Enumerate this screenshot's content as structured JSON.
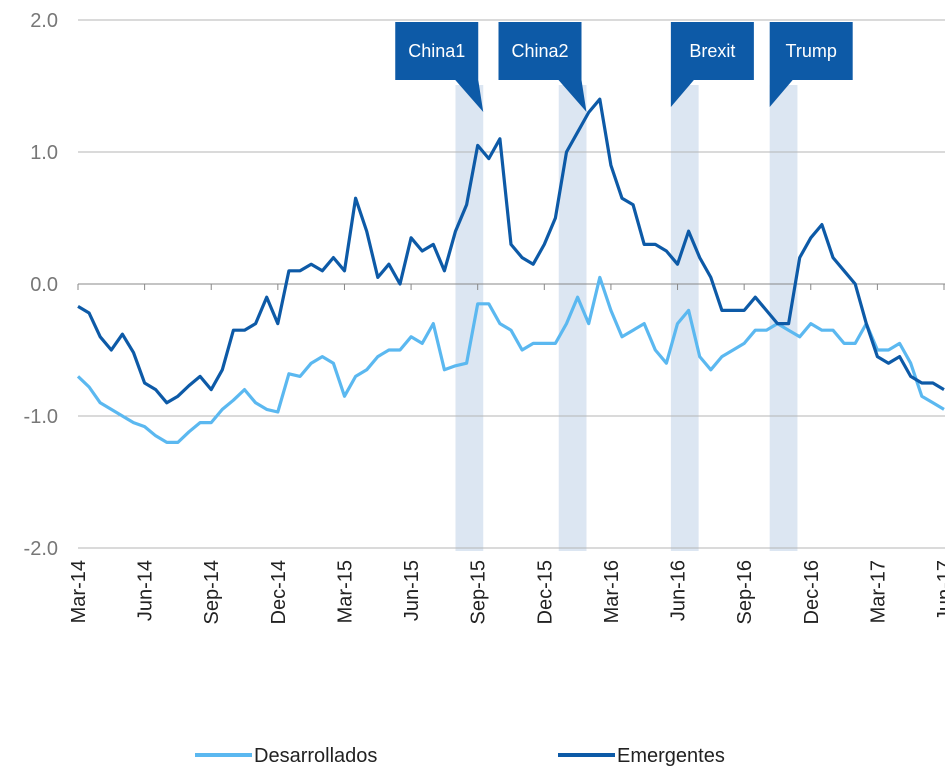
{
  "chart_data": {
    "type": "line",
    "categories": [
      "Mar-14",
      null,
      null,
      null,
      null,
      null,
      "Jun-14",
      null,
      null,
      null,
      null,
      null,
      "Sep-14",
      null,
      null,
      null,
      null,
      null,
      "Dec-14",
      null,
      null,
      null,
      null,
      null,
      "Mar-15",
      null,
      null,
      null,
      null,
      null,
      "Jun-15",
      null,
      null,
      null,
      null,
      null,
      "Sep-15",
      null,
      null,
      null,
      null,
      null,
      "Dec-15",
      null,
      null,
      null,
      null,
      null,
      "Mar-16",
      null,
      null,
      null,
      null,
      null,
      "Jun-16",
      null,
      null,
      null,
      null,
      null,
      "Sep-16",
      null,
      null,
      null,
      null,
      null,
      "Dec-16",
      null,
      null,
      null,
      null,
      null,
      "Mar-17",
      null,
      null,
      null,
      null,
      null,
      "Jun-17"
    ],
    "series": [
      {
        "name": "Desarrollados",
        "color": "#5bb8f0",
        "values": [
          -0.7,
          -0.78,
          -0.9,
          -0.95,
          -1.0,
          -1.05,
          -1.08,
          -1.15,
          -1.2,
          -1.2,
          -1.12,
          -1.05,
          -1.05,
          -0.95,
          -0.88,
          -0.8,
          -0.9,
          -0.95,
          -0.97,
          -0.68,
          -0.7,
          -0.6,
          -0.55,
          -0.6,
          -0.85,
          -0.7,
          -0.65,
          -0.55,
          -0.5,
          -0.5,
          -0.4,
          -0.45,
          -0.3,
          -0.65,
          -0.62,
          -0.6,
          -0.15,
          -0.15,
          -0.3,
          -0.35,
          -0.5,
          -0.45,
          -0.45,
          -0.45,
          -0.3,
          -0.1,
          -0.3,
          0.05,
          -0.2,
          -0.4,
          -0.35,
          -0.3,
          -0.5,
          -0.6,
          -0.3,
          -0.2,
          -0.55,
          -0.65,
          -0.55,
          -0.5,
          -0.45,
          -0.35,
          -0.35,
          -0.3,
          -0.35,
          -0.4,
          -0.3,
          -0.35,
          -0.35,
          -0.45,
          -0.45,
          -0.3,
          -0.5,
          -0.5,
          -0.45,
          -0.6,
          -0.85,
          -0.9,
          -0.95
        ]
      },
      {
        "name": "Emergentes",
        "color": "#0d5aa7",
        "values": [
          -0.17,
          -0.22,
          -0.4,
          -0.5,
          -0.38,
          -0.52,
          -0.75,
          -0.8,
          -0.9,
          -0.85,
          -0.77,
          -0.7,
          -0.8,
          -0.65,
          -0.35,
          -0.35,
          -0.3,
          -0.1,
          -0.3,
          0.1,
          0.1,
          0.15,
          0.1,
          0.2,
          0.1,
          0.65,
          0.4,
          0.05,
          0.15,
          0.0,
          0.35,
          0.25,
          0.3,
          0.1,
          0.4,
          0.6,
          1.05,
          0.95,
          1.1,
          0.3,
          0.2,
          0.15,
          0.3,
          0.5,
          1.0,
          1.15,
          1.3,
          1.4,
          0.9,
          0.65,
          0.6,
          0.3,
          0.3,
          0.25,
          0.15,
          0.4,
          0.2,
          0.05,
          -0.2,
          -0.2,
          -0.2,
          -0.1,
          -0.2,
          -0.3,
          -0.3,
          0.2,
          0.35,
          0.45,
          0.2,
          0.1,
          0.0,
          -0.3,
          -0.55,
          -0.6,
          -0.55,
          -0.7,
          -0.75,
          -0.75,
          -0.8
        ]
      }
    ],
    "ylim": [
      -2,
      2
    ],
    "yticks": [
      {
        "value": 2,
        "label": "2.0"
      },
      {
        "value": 1,
        "label": "1.0"
      },
      {
        "value": 0,
        "label": "0.0"
      },
      {
        "value": -1,
        "label": "-1.0"
      },
      {
        "value": -2,
        "label": "-2.0"
      }
    ],
    "grid": true,
    "legend": "bottom",
    "annotations": [
      {
        "label": "China1",
        "x_range": [
          34,
          36.5
        ],
        "callout_side": "left"
      },
      {
        "label": "China2",
        "x_range": [
          43.3,
          45.8
        ],
        "callout_side": "left"
      },
      {
        "label": "Brexit",
        "x_range": [
          53.4,
          55.9
        ],
        "callout_side": "right"
      },
      {
        "label": "Trump",
        "x_range": [
          62.3,
          64.8
        ],
        "callout_side": "right"
      }
    ]
  }
}
